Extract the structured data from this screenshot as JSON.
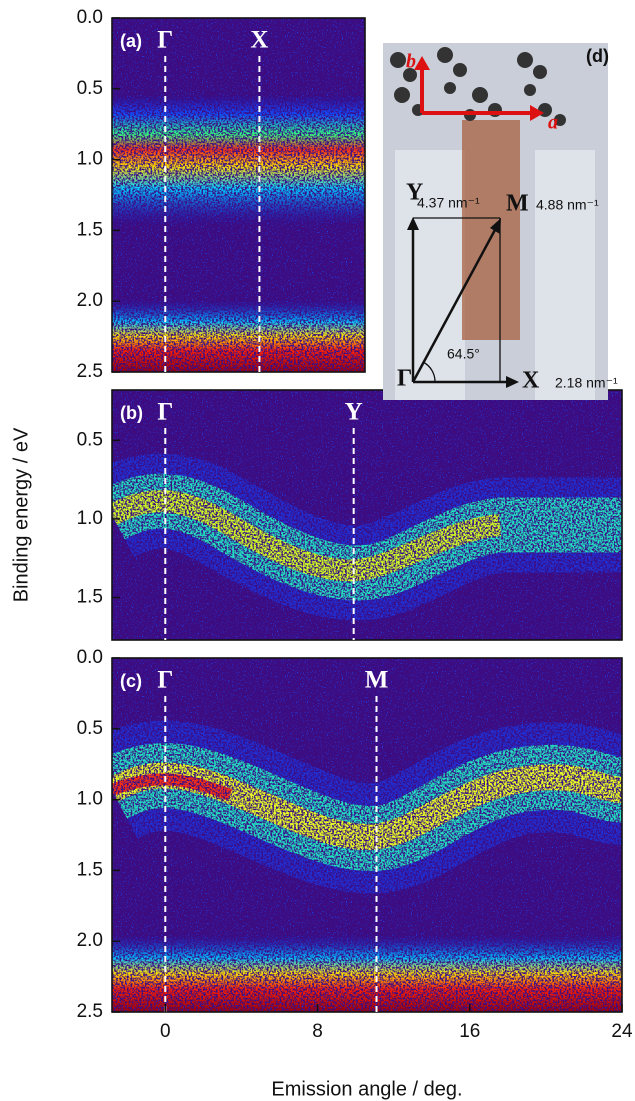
{
  "chart_data": [
    {
      "type": "heatmap",
      "panel_label": "(a)",
      "xlim": [
        -2.8,
        10.5
      ],
      "ylim": [
        0,
        2.5
      ],
      "y_inverted": true,
      "yticks": [
        {
          "value": 0,
          "label": "0.0"
        },
        {
          "value": 0.5,
          "label": "0.5"
        },
        {
          "value": 1,
          "label": "1.0"
        },
        {
          "value": 1.5,
          "label": "1.5"
        },
        {
          "value": 2,
          "label": "2.0"
        },
        {
          "value": 2.5,
          "label": "2.5"
        }
      ],
      "markers": [
        {
          "label": "Γ",
          "x": 0
        },
        {
          "label": "X",
          "x": 4.95
        }
      ]
    },
    {
      "type": "heatmap",
      "panel_label": "(b)",
      "xlim": [
        -2.8,
        24
      ],
      "ylim": [
        0.18,
        1.77
      ],
      "y_inverted": true,
      "yticks": [
        {
          "value": 0.5,
          "label": "0.5"
        },
        {
          "value": 1,
          "label": "1.0"
        },
        {
          "value": 1.5,
          "label": "1.5"
        }
      ],
      "ylabel": "Binding energy / eV",
      "markers": [
        {
          "label": "Γ",
          "x": 0
        },
        {
          "label": "Y",
          "x": 9.9
        }
      ]
    },
    {
      "type": "heatmap",
      "panel_label": "(c)",
      "xlim": [
        -2.8,
        24
      ],
      "ylim": [
        0,
        2.5
      ],
      "y_inverted": true,
      "yticks": [
        {
          "value": 0,
          "label": "0.0"
        },
        {
          "value": 0.5,
          "label": "0.5"
        },
        {
          "value": 1,
          "label": "1.0"
        },
        {
          "value": 1.5,
          "label": "1.5"
        },
        {
          "value": 2,
          "label": "2.0"
        },
        {
          "value": 2.5,
          "label": "2.5"
        }
      ],
      "xticks": [
        0,
        8,
        16,
        24
      ],
      "xlabel": "Emission angle / deg.",
      "markers": [
        {
          "label": "Γ",
          "x": 0
        },
        {
          "label": "M",
          "x": 11.1
        }
      ]
    }
  ],
  "inset": {
    "label": "(d)",
    "axis_b": "b",
    "axis_a": "a",
    "gamma": "Γ",
    "x_point": "X",
    "y_point": "Y",
    "m_point": "M",
    "x_length": "2.18 nm⁻¹",
    "y_length": "4.37 nm⁻¹",
    "m_length": "4.88 nm⁻¹",
    "angle": "64.5°"
  }
}
